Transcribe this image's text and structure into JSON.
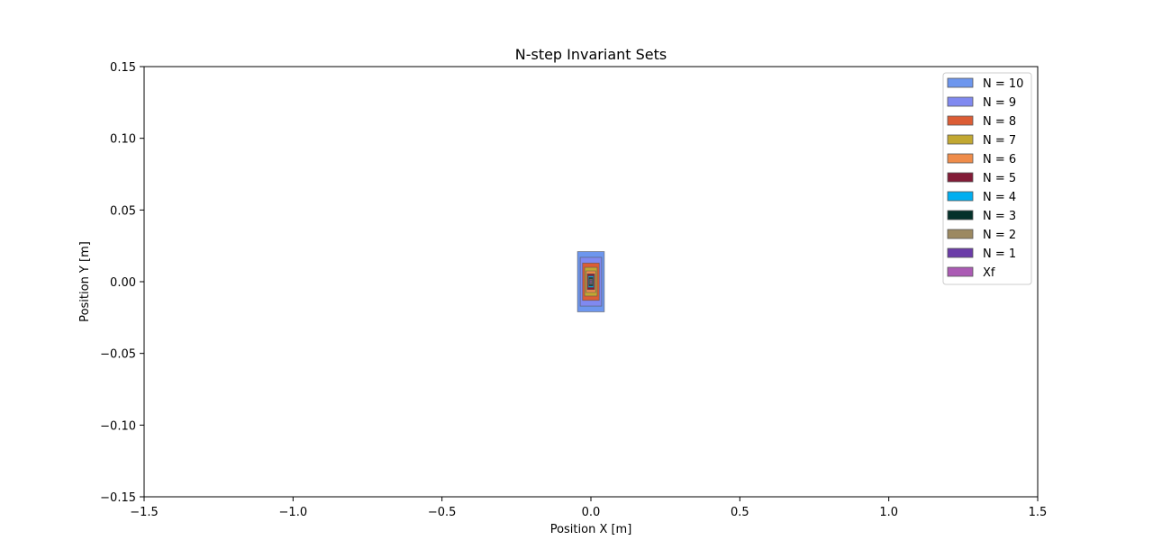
{
  "chart_data": {
    "type": "area",
    "title": "N-step Invariant Sets",
    "xlabel": "Position X [m]",
    "ylabel": "Position Y [m]",
    "xlim": [
      -1.5,
      1.5
    ],
    "ylim": [
      -0.15,
      0.15
    ],
    "xticks": [
      -1.5,
      -1.0,
      -0.5,
      0.0,
      0.5,
      1.0,
      1.5
    ],
    "xtick_labels": [
      "−1.5",
      "−1.0",
      "−0.5",
      "0.0",
      "0.5",
      "1.0",
      "1.5"
    ],
    "yticks": [
      0.15,
      0.1,
      0.05,
      0.0,
      -0.05,
      -0.1,
      -0.15
    ],
    "ytick_labels": [
      "0.15",
      "0.10",
      "0.05",
      "0.00",
      "−0.05",
      "−0.10",
      "−0.15"
    ],
    "grid": false,
    "legend_position": "top-right",
    "series": [
      {
        "name": "N = 10",
        "color": "#6d96ee",
        "x_range": [
          -0.045,
          0.045
        ],
        "y_range": [
          -0.021,
          0.021
        ]
      },
      {
        "name": "N = 9",
        "color": "#8089f0",
        "x_range": [
          -0.036,
          0.036
        ],
        "y_range": [
          -0.017,
          0.017
        ]
      },
      {
        "name": "N = 8",
        "color": "#dc5d35",
        "x_range": [
          -0.028,
          0.028
        ],
        "y_range": [
          -0.013,
          0.013
        ]
      },
      {
        "name": "N = 7",
        "color": "#c2a832",
        "x_range": [
          -0.021,
          0.021
        ],
        "y_range": [
          -0.01,
          0.01
        ]
      },
      {
        "name": "N = 6",
        "color": "#ef8c4a",
        "x_range": [
          -0.016,
          0.016
        ],
        "y_range": [
          -0.0075,
          0.0075
        ]
      },
      {
        "name": "N = 5",
        "color": "#821c37",
        "x_range": [
          -0.012,
          0.012
        ],
        "y_range": [
          -0.0055,
          0.0055
        ]
      },
      {
        "name": "N = 4",
        "color": "#00aef0",
        "x_range": [
          -0.009,
          0.009
        ],
        "y_range": [
          -0.004,
          0.004
        ]
      },
      {
        "name": "N = 3",
        "color": "#04312a",
        "x_range": [
          -0.007,
          0.007
        ],
        "y_range": [
          -0.003,
          0.003
        ]
      },
      {
        "name": "N = 2",
        "color": "#9c8961",
        "x_range": [
          -0.005,
          0.005
        ],
        "y_range": [
          -0.002,
          0.002
        ]
      },
      {
        "name": "N = 1",
        "color": "#6b3ca8",
        "x_range": [
          -0.0035,
          0.0035
        ],
        "y_range": [
          -0.0014,
          0.0014
        ]
      },
      {
        "name": "Xf",
        "color": "#ab5bb4",
        "x_range": [
          -0.002,
          0.002
        ],
        "y_range": [
          -0.0008,
          0.0008
        ]
      }
    ]
  }
}
